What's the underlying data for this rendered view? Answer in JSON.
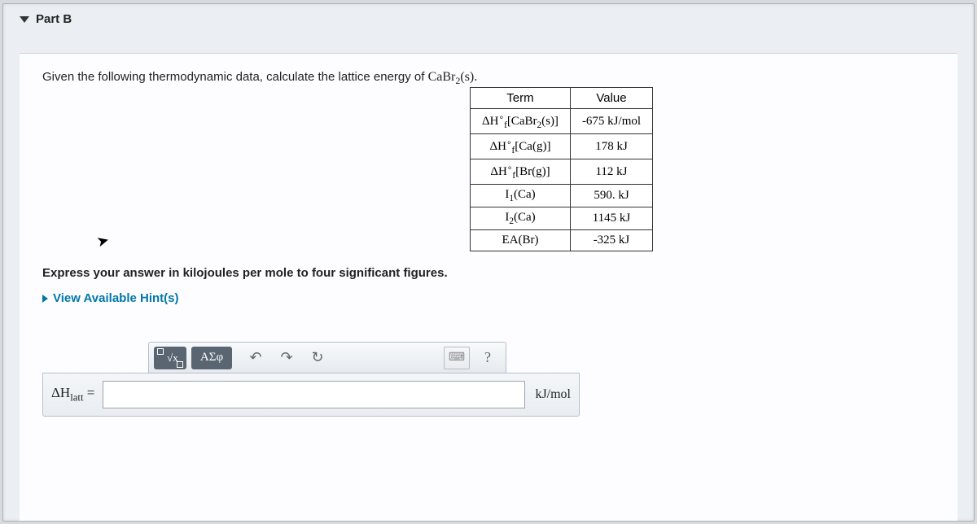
{
  "part": {
    "label": "Part B"
  },
  "prompt": {
    "lead": "Given the following thermodynamic data, calculate the lattice energy of ",
    "compound": "CaBr",
    "compound_sub": "2",
    "compound_state": "(s)."
  },
  "table": {
    "headers": [
      "Term",
      "Value"
    ],
    "rows": [
      {
        "term_html": "ΔH<span style='font-size:0.7em;vertical-align:super'>∘</span><sub>f</sub>[CaBr<sub>2</sub>(s)]",
        "value": "-675 kJ/mol"
      },
      {
        "term_html": "ΔH<span style='font-size:0.7em;vertical-align:super'>∘</span><sub>f</sub>[Ca(g)]",
        "value": "178 kJ"
      },
      {
        "term_html": "ΔH<span style='font-size:0.7em;vertical-align:super'>∘</span><sub>f</sub>[Br(g)]",
        "value": "112 kJ"
      },
      {
        "term_html": "I<sub>1</sub>(Ca)",
        "value": "590. kJ"
      },
      {
        "term_html": "I<sub>2</sub>(Ca)",
        "value": "1145 kJ"
      },
      {
        "term_html": "EA(Br)",
        "value": "-325 kJ"
      }
    ]
  },
  "instruction": "Express your answer in kilojoules per mole to four significant figures.",
  "hints_label": "View Available Hint(s)",
  "toolbar": {
    "templates_label": "√x",
    "greek_label": "ΑΣφ",
    "undo": "↶",
    "redo": "↷",
    "reset": "↻",
    "keyboard": "⌨",
    "help": "?"
  },
  "answer": {
    "lhs_html": "ΔH<sub>latt</sub> =",
    "value": "",
    "units": "kJ/mol"
  }
}
